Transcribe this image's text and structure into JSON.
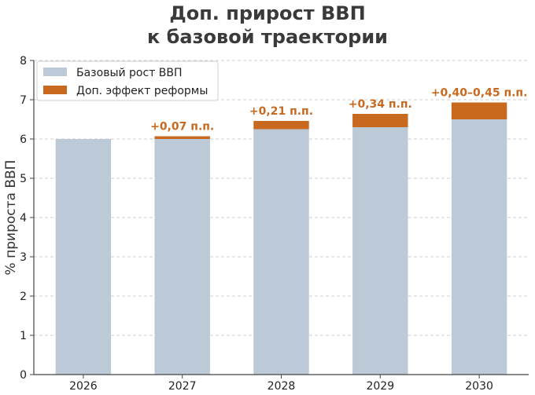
{
  "chart_data": {
    "type": "bar",
    "stacked": true,
    "title_lines": [
      "Доп. прирост ВВП",
      "к базовой траектории"
    ],
    "ylabel": "% прироста ВВП",
    "xlabel": "",
    "categories": [
      "2026",
      "2027",
      "2028",
      "2029",
      "2030"
    ],
    "series": [
      {
        "name": "Базовый рост ВВП",
        "values": [
          6.0,
          6.0,
          6.25,
          6.3,
          6.5
        ],
        "color": "#bcc9d6"
      },
      {
        "name": "Доп. эффект реформы",
        "values": [
          0.0,
          0.07,
          0.21,
          0.34,
          0.43
        ],
        "color": "#c8691f"
      }
    ],
    "data_labels": [
      "",
      "+0,07 п.п.",
      "+0,21 п.п.",
      "+0,34 п.п.",
      "+0,40–0,45 п.п."
    ],
    "ylim": [
      0,
      8
    ],
    "yticks": [
      0,
      1,
      2,
      3,
      4,
      5,
      6,
      7,
      8
    ],
    "grid": true,
    "legend_position": "top-left"
  }
}
